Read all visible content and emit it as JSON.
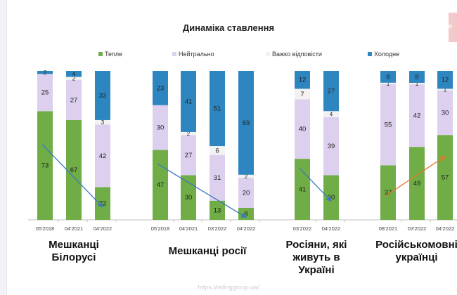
{
  "chart_data": {
    "type": "bar",
    "stacked": true,
    "title": "Динаміка ставлення",
    "legend_position": "top",
    "series_names": [
      "Тепле",
      "Нейтрально",
      "Важко відповісти",
      "Холодне"
    ],
    "colors": {
      "Тепле": "#70ad47",
      "Нейтрально": "#dcd0ee",
      "Важко відповісти": "#f2f2f2",
      "Холодне": "#2e86c1"
    },
    "ylim": [
      0,
      100
    ],
    "groups": [
      {
        "label": "Мешканці Білорусі",
        "trend_color": "#3a7bbf",
        "bars": [
          {
            "x": "05'2018",
            "values": [
              73,
              25,
              0,
              2
            ]
          },
          {
            "x": "04'2021",
            "values": [
              67,
              27,
              2,
              4
            ]
          },
          {
            "x": "04'2022",
            "values": [
              22,
              42,
              3,
              33
            ]
          }
        ]
      },
      {
        "label": "Мешканці росії",
        "trend_color": "#3a7bbf",
        "bars": [
          {
            "x": "05'2018",
            "values": [
              47,
              30,
              0,
              23
            ]
          },
          {
            "x": "04'2021",
            "values": [
              30,
              27,
              2,
              41
            ]
          },
          {
            "x": "03'2022",
            "values": [
              13,
              31,
              6,
              51
            ]
          },
          {
            "x": "04'2022",
            "values": [
              8,
              20,
              2,
              69
            ]
          }
        ]
      },
      {
        "label": "Росіяни, які живуть в Україні",
        "trend_color": "#3a7bbf",
        "bars": [
          {
            "x": "03'2022",
            "values": [
              41,
              40,
              7,
              12
            ]
          },
          {
            "x": "04'2022",
            "values": [
              30,
              39,
              4,
              27
            ]
          }
        ]
      },
      {
        "label": "Російськомовні українці",
        "trend_color": "#e07b2a",
        "bars": [
          {
            "x": "08'2021",
            "values": [
              37,
              55,
              1,
              8
            ]
          },
          {
            "x": "03'2022",
            "values": [
              49,
              42,
              1,
              8
            ]
          },
          {
            "x": "04'2022",
            "values": [
              57,
              30,
              1,
              12
            ]
          }
        ]
      }
    ]
  },
  "footer": {
    "url": "https://ratinggroup.ua/"
  }
}
